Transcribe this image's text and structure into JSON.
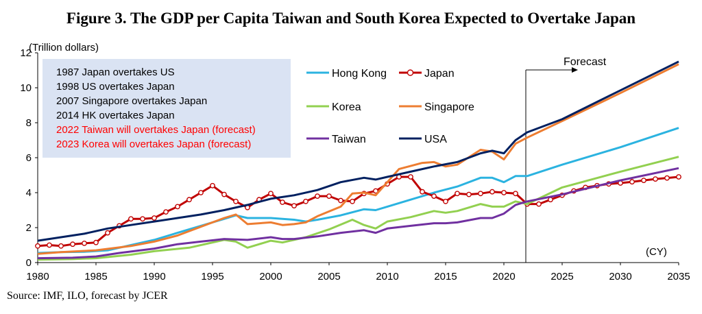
{
  "title": "Figure 3. The GDP per Capita Taiwan and South Korea Expected to Overtake Japan",
  "source": "Source: IMF, ILO, forecast by JCER",
  "chart_data": {
    "type": "line",
    "ylabel": "(Trillion dollars)",
    "xlabel": "(CY)",
    "xlim": [
      1980,
      2035
    ],
    "ylim": [
      0,
      12
    ],
    "x_ticks": [
      "1980",
      "1985",
      "1990",
      "1995",
      "2000",
      "2005",
      "2010",
      "2015",
      "2020",
      "2025",
      "2030",
      "2035"
    ],
    "y_ticks": [
      "0",
      "2",
      "4",
      "6",
      "8",
      "10",
      "12"
    ],
    "grid": false,
    "legend_position": "top-center",
    "forecast": {
      "label": "Forecast",
      "start_year": 2022
    },
    "annotations": [
      {
        "text": "1987  Japan overtakes US",
        "color": "#000000"
      },
      {
        "text": "1998  US overtakes Japan",
        "color": "#000000"
      },
      {
        "text": "2007  Singapore overtakes Japan",
        "color": "#000000"
      },
      {
        "text": "2014  HK overtakes Japan",
        "color": "#000000"
      },
      {
        "text": "2022  Taiwan will overtakes Japan (forecast)",
        "color": "#ff0000"
      },
      {
        "text": "2023  Korea will overtakes Japan (forecast)",
        "color": "#ff0000"
      }
    ],
    "series": [
      {
        "name": "Hong Kong",
        "color": "#2bb3e0",
        "marker": false,
        "points": [
          [
            1980,
            0.55
          ],
          [
            1982,
            0.6
          ],
          [
            1984,
            0.62
          ],
          [
            1986,
            0.7
          ],
          [
            1988,
            1.0
          ],
          [
            1990,
            1.3
          ],
          [
            1992,
            1.7
          ],
          [
            1994,
            2.1
          ],
          [
            1996,
            2.5
          ],
          [
            1997,
            2.7
          ],
          [
            1998,
            2.55
          ],
          [
            2000,
            2.55
          ],
          [
            2002,
            2.45
          ],
          [
            2003,
            2.35
          ],
          [
            2004,
            2.45
          ],
          [
            2006,
            2.7
          ],
          [
            2008,
            3.05
          ],
          [
            2009,
            3.0
          ],
          [
            2010,
            3.2
          ],
          [
            2012,
            3.6
          ],
          [
            2014,
            4.0
          ],
          [
            2016,
            4.35
          ],
          [
            2018,
            4.85
          ],
          [
            2019,
            4.85
          ],
          [
            2020,
            4.6
          ],
          [
            2021,
            4.95
          ],
          [
            2022,
            4.95
          ],
          [
            2025,
            5.6
          ],
          [
            2030,
            6.6
          ],
          [
            2035,
            7.7
          ]
        ]
      },
      {
        "name": "Japan",
        "color": "#c00000",
        "marker": true,
        "points": [
          [
            1980,
            0.95
          ],
          [
            1981,
            1.0
          ],
          [
            1982,
            0.95
          ],
          [
            1983,
            1.05
          ],
          [
            1984,
            1.1
          ],
          [
            1985,
            1.15
          ],
          [
            1986,
            1.7
          ],
          [
            1987,
            2.1
          ],
          [
            1988,
            2.5
          ],
          [
            1989,
            2.5
          ],
          [
            1990,
            2.55
          ],
          [
            1991,
            2.9
          ],
          [
            1992,
            3.2
          ],
          [
            1993,
            3.6
          ],
          [
            1994,
            4.0
          ],
          [
            1995,
            4.4
          ],
          [
            1996,
            3.9
          ],
          [
            1997,
            3.5
          ],
          [
            1998,
            3.15
          ],
          [
            1999,
            3.6
          ],
          [
            2000,
            3.95
          ],
          [
            2001,
            3.45
          ],
          [
            2002,
            3.25
          ],
          [
            2003,
            3.5
          ],
          [
            2004,
            3.8
          ],
          [
            2005,
            3.8
          ],
          [
            2006,
            3.55
          ],
          [
            2007,
            3.5
          ],
          [
            2008,
            3.95
          ],
          [
            2009,
            4.1
          ],
          [
            2010,
            4.5
          ],
          [
            2011,
            4.9
          ],
          [
            2012,
            4.9
          ],
          [
            2013,
            4.05
          ],
          [
            2014,
            3.8
          ],
          [
            2015,
            3.5
          ],
          [
            2016,
            3.95
          ],
          [
            2017,
            3.9
          ],
          [
            2018,
            3.95
          ],
          [
            2019,
            4.05
          ],
          [
            2020,
            4.0
          ],
          [
            2021,
            3.95
          ],
          [
            2022,
            3.35
          ],
          [
            2023,
            3.35
          ],
          [
            2024,
            3.6
          ],
          [
            2025,
            3.85
          ],
          [
            2026,
            4.1
          ],
          [
            2027,
            4.3
          ],
          [
            2028,
            4.4
          ],
          [
            2029,
            4.5
          ],
          [
            2030,
            4.55
          ],
          [
            2031,
            4.62
          ],
          [
            2032,
            4.7
          ],
          [
            2033,
            4.78
          ],
          [
            2034,
            4.84
          ],
          [
            2035,
            4.9
          ]
        ]
      },
      {
        "name": "Korea",
        "color": "#92d050",
        "marker": false,
        "points": [
          [
            1980,
            0.17
          ],
          [
            1983,
            0.2
          ],
          [
            1985,
            0.25
          ],
          [
            1988,
            0.45
          ],
          [
            1990,
            0.65
          ],
          [
            1993,
            0.85
          ],
          [
            1996,
            1.3
          ],
          [
            1997,
            1.2
          ],
          [
            1998,
            0.85
          ],
          [
            1999,
            1.05
          ],
          [
            2000,
            1.25
          ],
          [
            2001,
            1.15
          ],
          [
            2003,
            1.45
          ],
          [
            2005,
            1.9
          ],
          [
            2007,
            2.45
          ],
          [
            2008,
            2.15
          ],
          [
            2009,
            1.95
          ],
          [
            2010,
            2.35
          ],
          [
            2012,
            2.6
          ],
          [
            2014,
            2.95
          ],
          [
            2015,
            2.85
          ],
          [
            2016,
            2.95
          ],
          [
            2018,
            3.35
          ],
          [
            2019,
            3.2
          ],
          [
            2020,
            3.2
          ],
          [
            2021,
            3.5
          ],
          [
            2022,
            3.35
          ],
          [
            2025,
            4.3
          ],
          [
            2030,
            5.2
          ],
          [
            2035,
            6.05
          ]
        ]
      },
      {
        "name": "Singapore",
        "color": "#ed7d31",
        "marker": false,
        "points": [
          [
            1980,
            0.5
          ],
          [
            1982,
            0.6
          ],
          [
            1985,
            0.7
          ],
          [
            1988,
            0.95
          ],
          [
            1990,
            1.2
          ],
          [
            1992,
            1.55
          ],
          [
            1994,
            2.05
          ],
          [
            1996,
            2.55
          ],
          [
            1997,
            2.75
          ],
          [
            1998,
            2.2
          ],
          [
            2000,
            2.3
          ],
          [
            2001,
            2.15
          ],
          [
            2002,
            2.2
          ],
          [
            2003,
            2.3
          ],
          [
            2004,
            2.65
          ],
          [
            2006,
            3.2
          ],
          [
            2007,
            3.95
          ],
          [
            2008,
            4.0
          ],
          [
            2009,
            3.85
          ],
          [
            2010,
            4.6
          ],
          [
            2011,
            5.35
          ],
          [
            2013,
            5.7
          ],
          [
            2014,
            5.75
          ],
          [
            2015,
            5.5
          ],
          [
            2016,
            5.6
          ],
          [
            2018,
            6.45
          ],
          [
            2019,
            6.35
          ],
          [
            2020,
            5.9
          ],
          [
            2021,
            6.8
          ],
          [
            2022,
            7.15
          ],
          [
            2025,
            8.1
          ],
          [
            2030,
            9.7
          ],
          [
            2035,
            11.35
          ]
        ]
      },
      {
        "name": "Taiwan",
        "color": "#7030a0",
        "marker": false,
        "points": [
          [
            1980,
            0.25
          ],
          [
            1983,
            0.28
          ],
          [
            1985,
            0.35
          ],
          [
            1987,
            0.55
          ],
          [
            1990,
            0.8
          ],
          [
            1992,
            1.05
          ],
          [
            1994,
            1.2
          ],
          [
            1996,
            1.35
          ],
          [
            1998,
            1.3
          ],
          [
            2000,
            1.45
          ],
          [
            2001,
            1.35
          ],
          [
            2002,
            1.35
          ],
          [
            2004,
            1.5
          ],
          [
            2006,
            1.7
          ],
          [
            2008,
            1.85
          ],
          [
            2009,
            1.7
          ],
          [
            2010,
            1.95
          ],
          [
            2012,
            2.1
          ],
          [
            2014,
            2.25
          ],
          [
            2015,
            2.25
          ],
          [
            2016,
            2.3
          ],
          [
            2018,
            2.55
          ],
          [
            2019,
            2.55
          ],
          [
            2020,
            2.8
          ],
          [
            2021,
            3.3
          ],
          [
            2022,
            3.5
          ],
          [
            2025,
            3.9
          ],
          [
            2030,
            4.7
          ],
          [
            2035,
            5.4
          ]
        ]
      },
      {
        "name": "USA",
        "color": "#002060",
        "marker": false,
        "points": [
          [
            1980,
            1.25
          ],
          [
            1982,
            1.45
          ],
          [
            1984,
            1.65
          ],
          [
            1986,
            1.95
          ],
          [
            1988,
            2.15
          ],
          [
            1990,
            2.35
          ],
          [
            1992,
            2.55
          ],
          [
            1994,
            2.75
          ],
          [
            1996,
            3.0
          ],
          [
            1998,
            3.3
          ],
          [
            2000,
            3.65
          ],
          [
            2002,
            3.85
          ],
          [
            2004,
            4.15
          ],
          [
            2006,
            4.6
          ],
          [
            2008,
            4.85
          ],
          [
            2009,
            4.75
          ],
          [
            2010,
            4.9
          ],
          [
            2012,
            5.2
          ],
          [
            2014,
            5.5
          ],
          [
            2016,
            5.75
          ],
          [
            2018,
            6.25
          ],
          [
            2019,
            6.4
          ],
          [
            2020,
            6.25
          ],
          [
            2021,
            7.0
          ],
          [
            2022,
            7.45
          ],
          [
            2025,
            8.2
          ],
          [
            2030,
            9.85
          ],
          [
            2035,
            11.5
          ]
        ]
      }
    ]
  }
}
